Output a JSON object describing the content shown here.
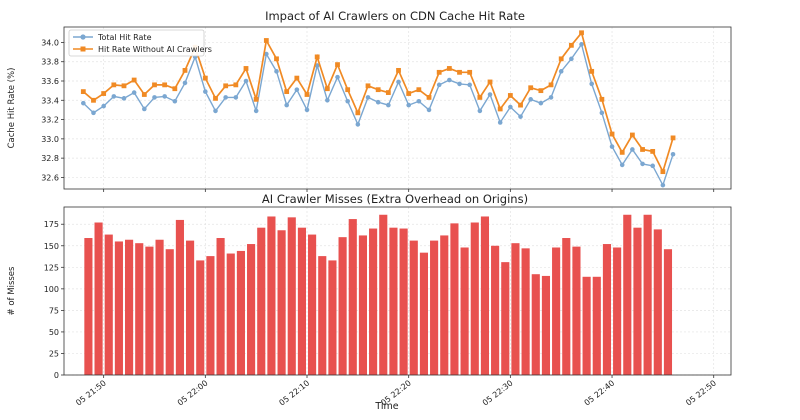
{
  "colors": {
    "total": "#7ba7d1",
    "without": "#f08a24",
    "bars": "#e8514f",
    "grid": "#e3e3e3",
    "axis": "#333333"
  },
  "x_ticks": [
    "05 21:50",
    "05 22:00",
    "05 22:10",
    "05 22:20",
    "05 22:30",
    "05 22:40",
    "05 22:50"
  ],
  "x_label": "Time",
  "chart_data": [
    {
      "type": "line",
      "title": "Impact of AI Crawlers on CDN Cache Hit Rate",
      "xlabel": "",
      "ylabel": "Cache Hit Rate (%)",
      "ylim": [
        32.48,
        34.16
      ],
      "y_ticks": [
        "32.6",
        "32.8",
        "33.0",
        "33.2",
        "33.4",
        "33.6",
        "33.8",
        "34.0"
      ],
      "y_tick_values": [
        32.6,
        32.8,
        33.0,
        33.2,
        33.4,
        33.6,
        33.8,
        34.0
      ],
      "x_start": "05 21:48",
      "x_step_minutes": 1,
      "xlim_minutes_from_2150": [
        -3.9,
        61.7
      ],
      "legend": "top-left",
      "grid": true,
      "series": [
        {
          "name": "Total Hit Rate",
          "values": [
            33.37,
            33.27,
            33.34,
            33.44,
            33.42,
            33.48,
            33.31,
            33.43,
            33.44,
            33.39,
            33.58,
            33.85,
            33.49,
            33.29,
            33.43,
            33.43,
            33.6,
            33.29,
            33.88,
            33.7,
            33.35,
            33.51,
            33.3,
            33.76,
            33.4,
            33.64,
            33.39,
            33.15,
            33.43,
            33.38,
            33.35,
            33.59,
            33.35,
            33.39,
            33.3,
            33.56,
            33.61,
            33.57,
            33.56,
            33.29,
            33.46,
            33.17,
            33.33,
            33.23,
            33.41,
            33.37,
            33.43,
            33.7,
            33.83,
            33.98,
            33.57,
            33.27,
            32.92,
            32.73,
            32.89,
            32.74,
            32.72,
            32.52,
            32.84
          ]
        },
        {
          "name": "Hit Rate Without AI Crawlers",
          "values": [
            33.49,
            33.4,
            33.47,
            33.56,
            33.55,
            33.61,
            33.46,
            33.56,
            33.56,
            33.52,
            33.71,
            33.95,
            33.63,
            33.42,
            33.55,
            33.56,
            33.73,
            33.41,
            34.02,
            33.83,
            33.49,
            33.63,
            33.46,
            33.85,
            33.52,
            33.77,
            33.51,
            33.27,
            33.55,
            33.51,
            33.48,
            33.71,
            33.47,
            33.51,
            33.43,
            33.69,
            33.73,
            33.69,
            33.69,
            33.43,
            33.59,
            33.31,
            33.45,
            33.35,
            33.53,
            33.5,
            33.56,
            33.83,
            33.97,
            34.1,
            33.7,
            33.41,
            33.05,
            32.86,
            33.04,
            32.89,
            32.87,
            32.66,
            33.01
          ]
        }
      ]
    },
    {
      "type": "bar",
      "title": "AI Crawler Misses (Extra Overhead on Origins)",
      "xlabel": "Time",
      "ylabel": "# of Misses",
      "ylim": [
        0,
        195
      ],
      "y_ticks": [
        "0",
        "25",
        "50",
        "75",
        "100",
        "125",
        "150",
        "175"
      ],
      "y_tick_values": [
        0,
        25,
        50,
        75,
        100,
        125,
        150,
        175
      ],
      "grid": true,
      "series": [
        {
          "name": "",
          "values": [
            159,
            177,
            163,
            155,
            157,
            153,
            149,
            157,
            146,
            180,
            156,
            133,
            138,
            159,
            141,
            144,
            152,
            171,
            184,
            168,
            183,
            171,
            163,
            138,
            133,
            160,
            181,
            162,
            170,
            186,
            171,
            170,
            156,
            142,
            156,
            162,
            176,
            148,
            177,
            184,
            150,
            131,
            153,
            147,
            117,
            115,
            148,
            159,
            149,
            114,
            114,
            152,
            148,
            186,
            171,
            186,
            169,
            146
          ]
        }
      ]
    }
  ]
}
